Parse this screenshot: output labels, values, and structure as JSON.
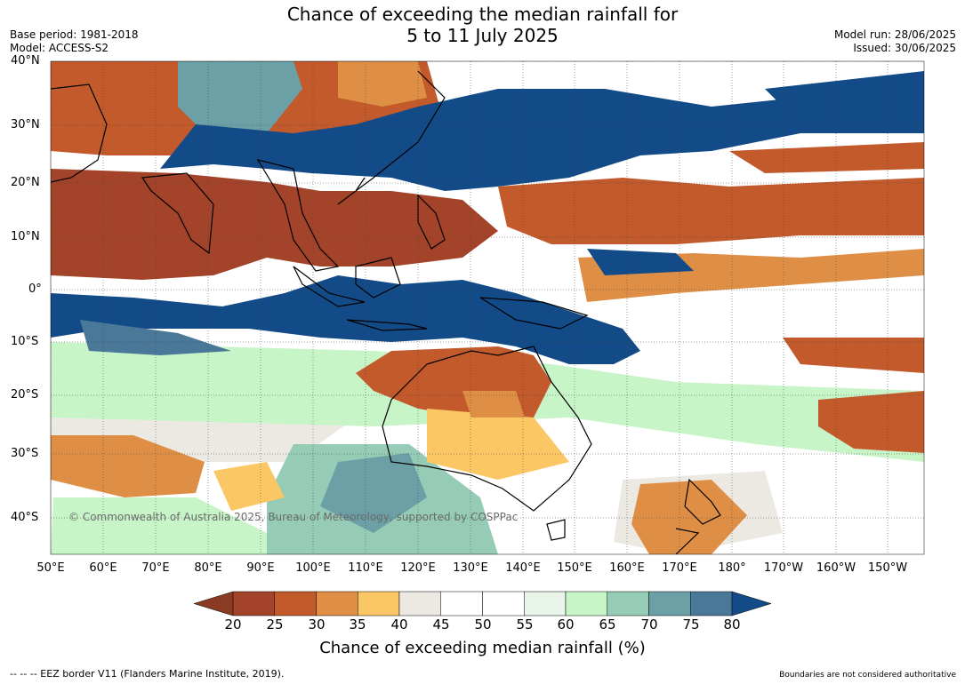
{
  "title_line1": "Chance of exceeding the median rainfall for",
  "title_line2": "5 to 11 July 2025",
  "base_period": "Base period: 1981-2018",
  "model": "Model: ACCESS-S2",
  "model_run": "Model run: 28/06/2025",
  "issued": "Issued: 30/06/2025",
  "copyright": "© Commonwealth of Australia 2025, Bureau of Meteorology, supported by COSPPac",
  "lat_labels": [
    "40°N",
    "30°N",
    "20°N",
    "10°N",
    "0°",
    "10°S",
    "20°S",
    "30°S",
    "40°S"
  ],
  "lon_labels": [
    "50°E",
    "60°E",
    "70°E",
    "80°E",
    "90°E",
    "100°E",
    "110°E",
    "120°E",
    "130°E",
    "140°E",
    "150°E",
    "160°E",
    "170°E",
    "180°",
    "170°W",
    "160°W",
    "150°W"
  ],
  "colorbar": {
    "ticks": [
      "20",
      "25",
      "30",
      "35",
      "40",
      "45",
      "50",
      "55",
      "60",
      "65",
      "70",
      "75",
      "80"
    ],
    "colors": [
      "#a3432a",
      "#c25a2c",
      "#de8f45",
      "#fbc664",
      "#ece9e3",
      "#ffffff",
      "#ffffff",
      "#e8f5e8",
      "#c8f5c8",
      "#96ccb6",
      "#6ba0a6",
      "#4a7898"
    ],
    "under_color": "#8b3a24",
    "over_color": "#134b88",
    "label": "Chance of exceeding median rainfall (%)"
  },
  "footer_left": "--  --  -- EEZ border V11 (Flanders Marine Institute, 2019).",
  "footer_right": "Boundaries are not considered authoritative"
}
